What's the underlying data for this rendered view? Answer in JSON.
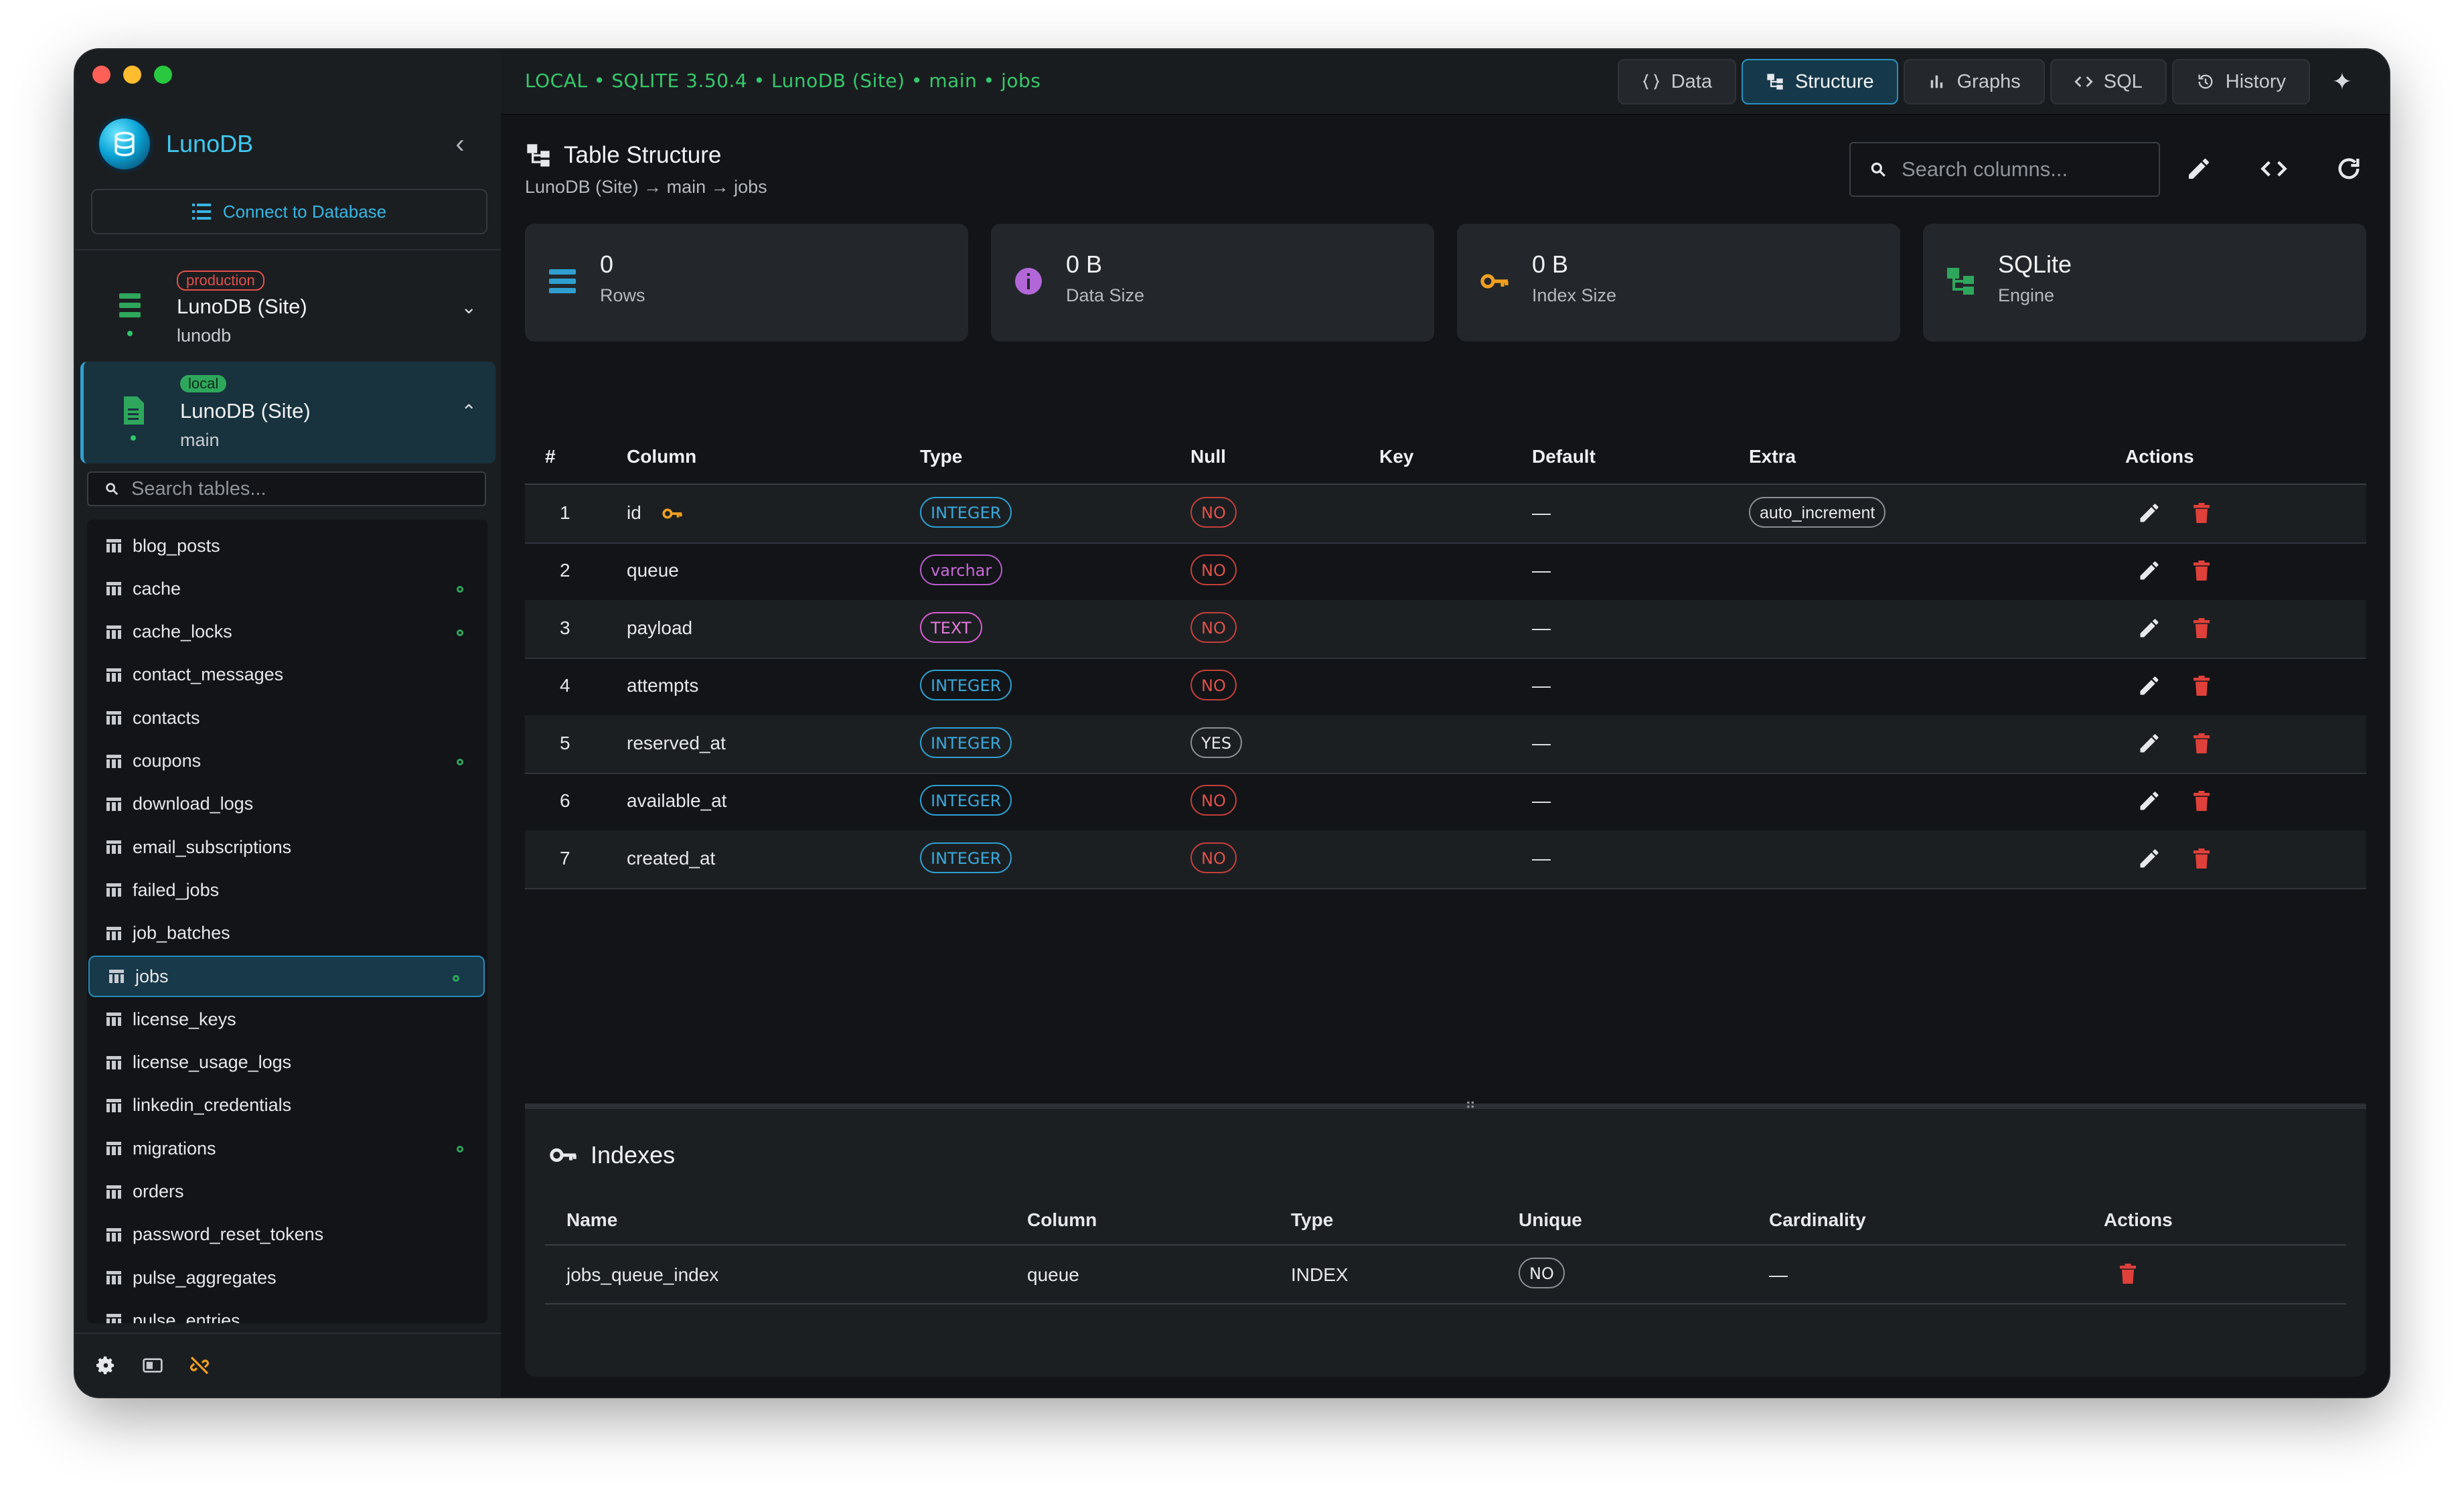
{
  "app": {
    "name": "LunoDB",
    "connect_label": "Connect to Database"
  },
  "connections": [
    {
      "tag": "production",
      "name": "LunoDB (Site)",
      "sub": "lunodb",
      "chevron": "⌄"
    },
    {
      "tag": "local",
      "name": "LunoDB (Site)",
      "sub": "main",
      "chevron": "⌃"
    }
  ],
  "sidebar": {
    "search_placeholder": "Search tables...",
    "tables": [
      {
        "name": "blog_posts",
        "synced": false
      },
      {
        "name": "cache",
        "synced": true
      },
      {
        "name": "cache_locks",
        "synced": true
      },
      {
        "name": "contact_messages",
        "synced": false
      },
      {
        "name": "contacts",
        "synced": false
      },
      {
        "name": "coupons",
        "synced": true
      },
      {
        "name": "download_logs",
        "synced": false
      },
      {
        "name": "email_subscriptions",
        "synced": false
      },
      {
        "name": "failed_jobs",
        "synced": false
      },
      {
        "name": "job_batches",
        "synced": false
      },
      {
        "name": "jobs",
        "synced": true,
        "selected": true
      },
      {
        "name": "license_keys",
        "synced": false
      },
      {
        "name": "license_usage_logs",
        "synced": false
      },
      {
        "name": "linkedin_credentials",
        "synced": false
      },
      {
        "name": "migrations",
        "synced": true
      },
      {
        "name": "orders",
        "synced": false
      },
      {
        "name": "password_reset_tokens",
        "synced": false
      },
      {
        "name": "pulse_aggregates",
        "synced": false
      },
      {
        "name": "pulse_entries",
        "synced": false
      }
    ]
  },
  "topbar": {
    "breadcrumb": "LOCAL • SQLITE 3.50.4 • LunoDB (Site) • main • jobs",
    "tabs": [
      {
        "label": "Data",
        "icon": "braces-icon"
      },
      {
        "label": "Structure",
        "icon": "structure-icon",
        "active": true
      },
      {
        "label": "Graphs",
        "icon": "bar-chart-icon"
      },
      {
        "label": "SQL",
        "icon": "code-icon"
      },
      {
        "label": "History",
        "icon": "history-icon"
      }
    ]
  },
  "header": {
    "title": "Table Structure",
    "breadcrumb": "LunoDB (Site) → main → jobs",
    "search_placeholder": "Search columns..."
  },
  "stats": [
    {
      "value": "0",
      "label": "Rows",
      "icon": "rows-icon",
      "color": "#2f9fcf"
    },
    {
      "value": "0 B",
      "label": "Data Size",
      "icon": "info-icon",
      "color": "#b267d8"
    },
    {
      "value": "0 B",
      "label": "Index Size",
      "icon": "key-icon",
      "color": "#f0a020"
    },
    {
      "value": "SQLite",
      "label": "Engine",
      "icon": "engine-icon",
      "color": "#2ea75c"
    }
  ],
  "columns_table": {
    "headers": [
      "#",
      "Column",
      "Type",
      "Null",
      "Key",
      "Default",
      "Extra",
      "Actions"
    ],
    "rows": [
      {
        "n": "1",
        "name": "id",
        "type": "INTEGER",
        "null": "NO",
        "key": true,
        "default": "—",
        "extra": "auto_increment"
      },
      {
        "n": "2",
        "name": "queue",
        "type": "varchar",
        "null": "NO",
        "key": false,
        "default": "—",
        "extra": ""
      },
      {
        "n": "3",
        "name": "payload",
        "type": "TEXT",
        "null": "NO",
        "key": false,
        "default": "—",
        "extra": ""
      },
      {
        "n": "4",
        "name": "attempts",
        "type": "INTEGER",
        "null": "NO",
        "key": false,
        "default": "—",
        "extra": ""
      },
      {
        "n": "5",
        "name": "reserved_at",
        "type": "INTEGER",
        "null": "YES",
        "key": false,
        "default": "—",
        "extra": ""
      },
      {
        "n": "6",
        "name": "available_at",
        "type": "INTEGER",
        "null": "NO",
        "key": false,
        "default": "—",
        "extra": ""
      },
      {
        "n": "7",
        "name": "created_at",
        "type": "INTEGER",
        "null": "NO",
        "key": false,
        "default": "—",
        "extra": ""
      }
    ]
  },
  "indexes": {
    "title": "Indexes",
    "headers": [
      "Name",
      "Column",
      "Type",
      "Unique",
      "Cardinality",
      "Actions"
    ],
    "rows": [
      {
        "name": "jobs_queue_index",
        "column": "queue",
        "type": "INDEX",
        "unique": "NO",
        "cardinality": "—"
      }
    ]
  },
  "colors": {
    "accent": "#2f9fcf",
    "green": "#35c96c",
    "danger": "#e0524b",
    "key": "#f0a020"
  }
}
